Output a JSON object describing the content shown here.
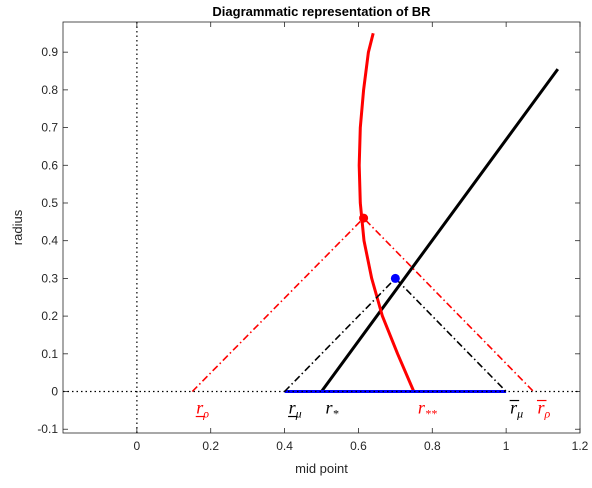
{
  "chart_data": {
    "type": "line",
    "title": "Diagrammatic representation of BR",
    "xlabel": "mid point",
    "ylabel": "radius",
    "xlim": [
      -0.2,
      1.2
    ],
    "ylim": [
      -0.11,
      0.98
    ],
    "xticks": [
      0,
      0.2,
      0.4,
      0.6,
      0.8,
      1,
      1.2
    ],
    "xtick_labels": [
      "0",
      "0.2",
      "0.4",
      "0.6",
      "0.8",
      "1",
      "1.2"
    ],
    "yticks": [
      -0.1,
      0,
      0.1,
      0.2,
      0.3,
      0.4,
      0.5,
      0.6,
      0.7,
      0.8,
      0.9
    ],
    "ytick_labels": [
      "-0.1",
      "0",
      "0.1",
      "0.2",
      "0.3",
      "0.4",
      "0.5",
      "0.6",
      "0.7",
      "0.8",
      "0.9"
    ],
    "grid": false,
    "series": [
      {
        "style": "solid",
        "color": "#000000",
        "x": [
          0.5,
          1.14
        ],
        "y": [
          0,
          0.855
        ]
      },
      {
        "style": "solid",
        "color": "#ff0000",
        "x": [
          0.75,
          0.706,
          0.665,
          0.636,
          0.615,
          0.605,
          0.602,
          0.605,
          0.614,
          0.627,
          0.64
        ],
        "y": [
          0,
          0.1,
          0.2,
          0.3,
          0.4,
          0.5,
          0.6,
          0.7,
          0.8,
          0.9,
          0.95
        ]
      },
      {
        "style": "solid",
        "color": "#0000ff",
        "x": [
          0.4,
          1.0
        ],
        "y": [
          0,
          0
        ]
      },
      {
        "style": "dashdot",
        "color": "#ff0000",
        "x": [
          0.15,
          0.614,
          1.074
        ],
        "y": [
          0,
          0.46,
          0
        ]
      },
      {
        "style": "dashdot",
        "color": "#000000",
        "x": [
          0.4,
          0.7,
          1.0
        ],
        "y": [
          0,
          0.3,
          0
        ]
      },
      {
        "style": "dotted",
        "color": "#000000",
        "x": [
          -0.2,
          1.2
        ],
        "y": [
          0,
          0
        ]
      },
      {
        "style": "dotted",
        "color": "#000000",
        "x": [
          0,
          0
        ],
        "y": [
          -0.11,
          0.98
        ]
      }
    ],
    "points": [
      {
        "x": 0.614,
        "y": 0.46,
        "color": "#ff0000"
      },
      {
        "x": 0.7,
        "y": 0.3,
        "color": "#0000ff"
      }
    ],
    "annotations": [
      {
        "base": "r",
        "sub": "ρ",
        "under": true,
        "over": false,
        "x": 0.15,
        "color": "#ff0000"
      },
      {
        "base": "r",
        "sub": "μ",
        "under": true,
        "over": false,
        "x": 0.4,
        "color": "#000000"
      },
      {
        "base": "r",
        "sub": "*",
        "under": false,
        "over": false,
        "x": 0.5,
        "color": "#000000"
      },
      {
        "base": "r",
        "sub": "**",
        "under": false,
        "over": false,
        "x": 0.75,
        "color": "#ff0000"
      },
      {
        "base": "r",
        "sub": "μ",
        "under": false,
        "over": true,
        "x": 1.0,
        "color": "#000000"
      },
      {
        "base": "r",
        "sub": "ρ",
        "under": false,
        "over": true,
        "x": 1.074,
        "color": "#ff0000"
      }
    ]
  }
}
